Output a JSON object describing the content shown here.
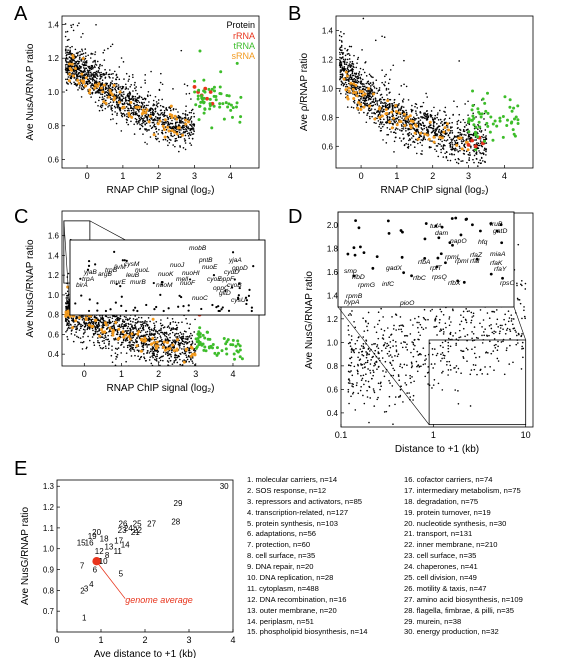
{
  "chart_data": [
    {
      "panel": "A",
      "type": "scatter",
      "xlabel": "RNAP ChIP signal (log₂)",
      "ylabel": "Ave NusA/RNAP ratio",
      "xlim": [
        -0.7,
        4.8
      ],
      "ylim": [
        0.55,
        1.45
      ],
      "xticks": [
        0,
        1,
        2,
        3,
        4
      ],
      "yticks": [
        0.6,
        0.8,
        1.0,
        1.2,
        1.4
      ],
      "legend": {
        "title": "Protein",
        "placement": "top-right",
        "entries": [
          {
            "name": "rRNA",
            "color": "#e8341c"
          },
          {
            "name": "tRNA",
            "color": "#3dbd2a"
          },
          {
            "name": "sRNA",
            "color": "#f29a1e"
          }
        ]
      },
      "series": [
        {
          "name": "Protein",
          "color": "#000000",
          "trend": {
            "x": [
              -0.6,
              0,
              0.5,
              1,
              1.5,
              2,
              2.5,
              3
            ],
            "y": [
              1.18,
              1.1,
              1.02,
              0.95,
              0.88,
              0.83,
              0.8,
              0.8
            ],
            "spread": 0.06,
            "n": 1400
          }
        },
        {
          "name": "sRNA",
          "color": "#f29a1e",
          "trend": {
            "x": [
              -0.5,
              0.5,
              1.5,
              2.5,
              3
            ],
            "y": [
              1.13,
              0.99,
              0.86,
              0.8,
              0.8
            ],
            "spread": 0.04,
            "n": 80
          }
        },
        {
          "name": "rRNA",
          "color": "#e8341c",
          "x": [
            3.0,
            3.1,
            3.2,
            3.3,
            3.35,
            3.45,
            3.5
          ],
          "y": [
            1.03,
            1.0,
            0.98,
            1.02,
            0.96,
            1.0,
            0.93
          ]
        },
        {
          "name": "tRNA",
          "color": "#3dbd2a",
          "trend": {
            "x": [
              3.0,
              3.5,
              4.0,
              4.3
            ],
            "y": [
              0.96,
              0.97,
              0.95,
              0.9
            ],
            "spread": 0.06,
            "n": 60
          }
        }
      ]
    },
    {
      "panel": "B",
      "type": "scatter",
      "xlabel": "RNAP ChIP signal (log₂)",
      "ylabel": "Ave ρ/RNAP ratio",
      "xlim": [
        -0.7,
        4.8
      ],
      "ylim": [
        0.45,
        1.5
      ],
      "xticks": [
        0,
        1,
        2,
        3,
        4
      ],
      "yticks": [
        0.6,
        0.8,
        1.0,
        1.2,
        1.4
      ],
      "series": [
        {
          "name": "Protein",
          "color": "#000000",
          "trend": {
            "x": [
              -0.6,
              0,
              0.5,
              1,
              1.5,
              2,
              2.5,
              3,
              3.5
            ],
            "y": [
              1.15,
              0.98,
              0.88,
              0.8,
              0.74,
              0.7,
              0.66,
              0.63,
              0.62
            ],
            "spread": 0.08,
            "n": 1400
          }
        },
        {
          "name": "sRNA",
          "color": "#f29a1e",
          "trend": {
            "x": [
              -0.5,
              0,
              1,
              2,
              3
            ],
            "y": [
              1.05,
              0.92,
              0.78,
              0.68,
              0.62
            ],
            "spread": 0.05,
            "n": 80
          }
        },
        {
          "name": "rRNA",
          "color": "#e8341c",
          "x": [
            3.0,
            3.1,
            3.2,
            3.3,
            3.4
          ],
          "y": [
            0.61,
            0.64,
            0.6,
            0.66,
            0.62
          ]
        },
        {
          "name": "tRNA",
          "color": "#3dbd2a",
          "trend": {
            "x": [
              3.0,
              3.5,
              4.0,
              4.4
            ],
            "y": [
              0.72,
              0.78,
              0.8,
              0.74
            ],
            "spread": 0.08,
            "n": 60
          }
        }
      ]
    },
    {
      "panel": "C",
      "type": "scatter",
      "xlabel": "RNAP ChIP signal (log₂)",
      "ylabel": "Ave NusG/RNAP ratio",
      "xlim": [
        -0.6,
        4.7
      ],
      "ylim": [
        0.28,
        1.85
      ],
      "xticks": [
        0,
        1,
        2,
        3,
        4
      ],
      "yticks": [
        0.4,
        0.6,
        0.8,
        1.0,
        1.2,
        1.4,
        1.6
      ],
      "inset_genes": [
        "mobB",
        "yjaA",
        "pntB",
        "nuoJ",
        "oppD",
        "cysM",
        "livM",
        "nuoL",
        "nuoE",
        "yjaB",
        "trpB",
        "cydD",
        "nuoHI",
        "argB",
        "leuB",
        "nuoK",
        "trpA",
        "oppF",
        "mell",
        "cyoE",
        "birA",
        "murE",
        "murB",
        "nuoM",
        "nuoF",
        "cyoB",
        "oppC",
        "gltD",
        "nuoC",
        "cysU"
      ],
      "series": [
        {
          "name": "Protein",
          "color": "#000000",
          "trend": {
            "x": [
              -0.5,
              0,
              0.5,
              1,
              1.5,
              2,
              2.5,
              3
            ],
            "y": [
              0.85,
              0.8,
              0.72,
              0.65,
              0.58,
              0.52,
              0.48,
              0.45
            ],
            "spread": 0.12,
            "n": 1500
          }
        },
        {
          "name": "sRNA",
          "color": "#f29a1e",
          "trend": {
            "x": [
              -0.5,
              0,
              1,
              2,
              3
            ],
            "y": [
              0.82,
              0.76,
              0.6,
              0.48,
              0.42
            ],
            "spread": 0.05,
            "n": 90
          }
        },
        {
          "name": "rRNA",
          "color": "#e8341c",
          "x": [
            2.9,
            3.0,
            3.1,
            3.2,
            3.3
          ],
          "y": [
            0.97,
            0.88,
            0.8,
            0.92,
            1.03
          ]
        },
        {
          "name": "tRNA",
          "color": "#3dbd2a",
          "trend": {
            "x": [
              3.0,
              3.5,
              4.0,
              4.3
            ],
            "y": [
              0.56,
              0.5,
              0.46,
              0.42
            ],
            "spread": 0.07,
            "n": 60
          }
        }
      ]
    },
    {
      "panel": "D",
      "type": "scatter",
      "xscale": "log",
      "xlabel": "Distance to +1 (kb)",
      "ylabel": "Ave NusG/RNAP ratio",
      "xlim": [
        0.1,
        12
      ],
      "ylim": [
        0.28,
        2.1
      ],
      "xticks": [
        0.1,
        1,
        10
      ],
      "yticks": [
        0.4,
        0.6,
        0.8,
        1.0,
        1.2,
        1.4,
        1.6,
        1.8,
        2.0
      ],
      "inset_genes": [
        "tufA",
        "truB",
        "dam",
        "gatD",
        "napO",
        "hfq",
        "miaA",
        "rfaZ",
        "rpmL",
        "rpml",
        "rfal",
        "rfbA",
        "rfaK",
        "rfaY",
        "smp",
        "gadX",
        "rplT",
        "rpsQ",
        "rfbD",
        "rfbC",
        "rfbX",
        "rpsO",
        "infC",
        "rpmG",
        "rpmB",
        "hypA",
        "pioO"
      ],
      "series": [
        {
          "name": "Protein",
          "color": "#000000",
          "trend": {
            "x": [
              0.12,
              0.3,
              1,
              3,
              10
            ],
            "y": [
              0.85,
              0.88,
              0.98,
              1.08,
              1.2
            ],
            "spread": 0.22,
            "n": 700
          }
        }
      ]
    },
    {
      "panel": "E",
      "type": "scatter",
      "xlabel": "Ave distance to +1 (kb)",
      "ylabel": "Ave NusG/RNAP ratio",
      "xlim": [
        0,
        4
      ],
      "ylim": [
        0.6,
        1.33
      ],
      "xticks": [
        0,
        1,
        2,
        3,
        4
      ],
      "yticks": [
        0.7,
        0.8,
        0.9,
        1.0,
        1.1,
        1.2,
        1.3
      ],
      "annotation": "genome average",
      "genome_average": {
        "x": 0.9,
        "y": 0.94,
        "color": "#e8341c"
      },
      "points": [
        {
          "label": "1",
          "x": 0.62,
          "y": 0.67
        },
        {
          "label": "2",
          "x": 0.58,
          "y": 0.8
        },
        {
          "label": "3",
          "x": 0.66,
          "y": 0.81
        },
        {
          "label": "4",
          "x": 0.78,
          "y": 0.83
        },
        {
          "label": "5",
          "x": 1.45,
          "y": 0.88
        },
        {
          "label": "6",
          "x": 0.86,
          "y": 0.9
        },
        {
          "label": "7",
          "x": 0.57,
          "y": 0.92
        },
        {
          "label": "8",
          "x": 1.14,
          "y": 0.97
        },
        {
          "label": "9",
          "x": 0.97,
          "y": 0.94
        },
        {
          "label": "10",
          "x": 1.05,
          "y": 0.94
        },
        {
          "label": "11",
          "x": 1.38,
          "y": 0.99
        },
        {
          "label": "12",
          "x": 0.96,
          "y": 0.99
        },
        {
          "label": "13",
          "x": 1.18,
          "y": 1.01
        },
        {
          "label": "14",
          "x": 1.55,
          "y": 1.02
        },
        {
          "label": "15",
          "x": 0.55,
          "y": 1.03
        },
        {
          "label": "16",
          "x": 0.73,
          "y": 1.03
        },
        {
          "label": "17",
          "x": 1.4,
          "y": 1.04
        },
        {
          "label": "18",
          "x": 1.07,
          "y": 1.05
        },
        {
          "label": "19",
          "x": 0.8,
          "y": 1.06
        },
        {
          "label": "20",
          "x": 0.9,
          "y": 1.08
        },
        {
          "label": "21",
          "x": 1.78,
          "y": 1.08
        },
        {
          "label": "22",
          "x": 1.83,
          "y": 1.09
        },
        {
          "label": "23",
          "x": 1.48,
          "y": 1.09
        },
        {
          "label": "24",
          "x": 1.62,
          "y": 1.1
        },
        {
          "label": "25",
          "x": 1.82,
          "y": 1.12
        },
        {
          "label": "26",
          "x": 1.5,
          "y": 1.12
        },
        {
          "label": "27",
          "x": 2.15,
          "y": 1.12
        },
        {
          "label": "28",
          "x": 2.7,
          "y": 1.13
        },
        {
          "label": "29",
          "x": 2.75,
          "y": 1.22
        },
        {
          "label": "30",
          "x": 3.8,
          "y": 1.3
        }
      ]
    }
  ],
  "panel_labels": [
    "A",
    "B",
    "C",
    "D",
    "E"
  ],
  "categories": [
    "1. molecular carriers, n=14",
    "2. SOS response, n=12",
    "3. repressors and activators, n=85",
    "4. transcription-related, n=127",
    "5. protein synthesis, n=103",
    "6. adaptations, n=56",
    "7. protection, n=60",
    "8. cell surface, n=35",
    "9. DNA repair, n=20",
    "10. DNA replication, n=28",
    "11. cytoplasm, n=488",
    "12. DNA recombination, n=16",
    "13. outer membrane, n=20",
    "14. periplasm, n=51",
    "15. phospholipid biosynthesis, n=14",
    "16. cofactor carriers, n=74",
    "17. intermediary metabolism, n=75",
    "18. degradation, n=75",
    "19. protein turnover, n=19",
    "20. nucleotide synthesis, n=30",
    "21. transport, n=131",
    "22. inner membrane, n=210",
    "23. cell surface, n=35",
    "24. chaperones, n=41",
    "25. cell division, n=49",
    "26. motility & taxis, n=47",
    "27. amino acid biosynthesis, n=109",
    "28. flagella, fimbrae, & pilli, n=35",
    "29. murein, n=38",
    "30. energy production, n=32"
  ]
}
